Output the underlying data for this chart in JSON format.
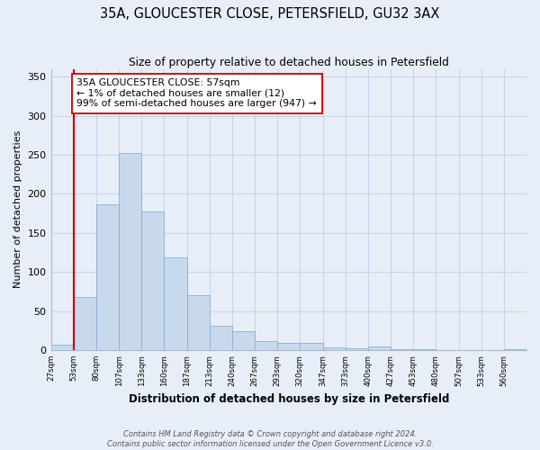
{
  "title": "35A, GLOUCESTER CLOSE, PETERSFIELD, GU32 3AX",
  "subtitle": "Size of property relative to detached houses in Petersfield",
  "xlabel": "Distribution of detached houses by size in Petersfield",
  "ylabel": "Number of detached properties",
  "bin_labels": [
    "27sqm",
    "53sqm",
    "80sqm",
    "107sqm",
    "133sqm",
    "160sqm",
    "187sqm",
    "213sqm",
    "240sqm",
    "267sqm",
    "293sqm",
    "320sqm",
    "347sqm",
    "373sqm",
    "400sqm",
    "427sqm",
    "453sqm",
    "480sqm",
    "507sqm",
    "533sqm",
    "560sqm"
  ],
  "bar_heights": [
    7,
    68,
    187,
    252,
    177,
    119,
    70,
    31,
    24,
    12,
    9,
    9,
    3,
    2,
    5,
    1,
    1,
    0,
    0,
    0,
    1
  ],
  "bar_color": "#c8d9ee",
  "bar_edge_color": "#8ab0d0",
  "vline_x_index": 1,
  "vline_color": "#cc0000",
  "annotation_text": "35A GLOUCESTER CLOSE: 57sqm\n← 1% of detached houses are smaller (12)\n99% of semi-detached houses are larger (947) →",
  "annotation_box_color": "white",
  "annotation_box_edge_color": "#cc0000",
  "ylim": [
    0,
    360
  ],
  "yticks": [
    0,
    50,
    100,
    150,
    200,
    250,
    300,
    350
  ],
  "footer_text": "Contains HM Land Registry data © Crown copyright and database right 2024.\nContains public sector information licensed under the Open Government Licence v3.0.",
  "grid_color": "#c8d4e8",
  "background_color": "#e8eef8",
  "plot_bg_color": "#e8eef8"
}
